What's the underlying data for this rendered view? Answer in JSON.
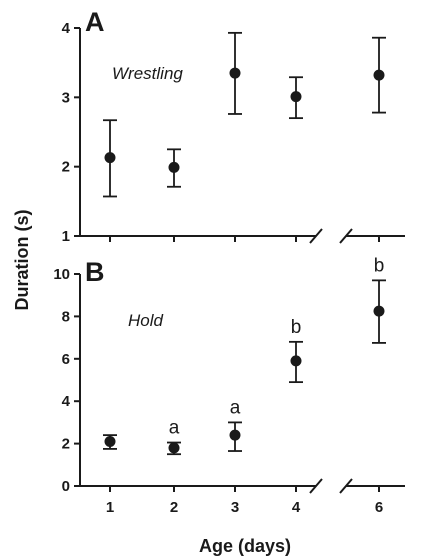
{
  "chart_data": [
    {
      "type": "scatter",
      "panel": "A",
      "label": "Wrestling",
      "ylabel": "Duration (s)",
      "xlabel": "Age (days)",
      "ylim": [
        1,
        4
      ],
      "yticks": [
        "1",
        "2",
        "3",
        "4"
      ],
      "xticks": [
        "1",
        "2",
        "3",
        "4",
        "6"
      ],
      "x_axis_break": "between 4 and 6",
      "grid": false,
      "points": [
        {
          "x": 1,
          "y": 2.13,
          "err_low": 1.57,
          "err_high": 2.67,
          "sig": ""
        },
        {
          "x": 2,
          "y": 1.99,
          "err_low": 1.71,
          "err_high": 2.25,
          "sig": ""
        },
        {
          "x": 3,
          "y": 3.35,
          "err_low": 2.76,
          "err_high": 3.93,
          "sig": ""
        },
        {
          "x": 4,
          "y": 3.01,
          "err_low": 2.7,
          "err_high": 3.29,
          "sig": ""
        },
        {
          "x": 6,
          "y": 3.32,
          "err_low": 2.78,
          "err_high": 3.86,
          "sig": ""
        }
      ]
    },
    {
      "type": "scatter",
      "panel": "B",
      "label": "Hold",
      "ylabel": "Duration (s)",
      "xlabel": "Age (days)",
      "ylim": [
        0,
        10
      ],
      "yticks": [
        "0",
        "2",
        "4",
        "6",
        "8",
        "10"
      ],
      "xticks": [
        "1",
        "2",
        "3",
        "4",
        "6"
      ],
      "x_axis_break": "between 4 and 6",
      "grid": false,
      "points": [
        {
          "x": 1,
          "y": 2.1,
          "err_low": 1.75,
          "err_high": 2.4,
          "sig": ""
        },
        {
          "x": 2,
          "y": 1.8,
          "err_low": 1.5,
          "err_high": 2.05,
          "sig": "a"
        },
        {
          "x": 3,
          "y": 2.4,
          "err_low": 1.65,
          "err_high": 3.0,
          "sig": "a"
        },
        {
          "x": 4,
          "y": 5.9,
          "err_low": 4.9,
          "err_high": 6.8,
          "sig": "b"
        },
        {
          "x": 6,
          "y": 8.25,
          "err_low": 6.75,
          "err_high": 9.7,
          "sig": "b"
        }
      ]
    }
  ],
  "colors": {
    "ink": "#1a1a1a"
  }
}
